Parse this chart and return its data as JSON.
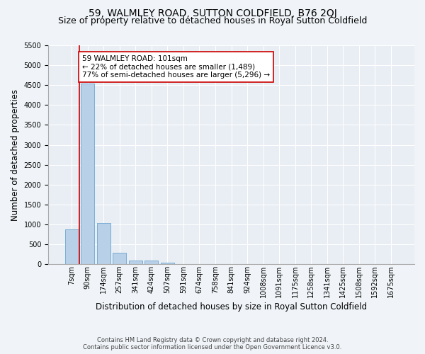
{
  "title": "59, WALMLEY ROAD, SUTTON COLDFIELD, B76 2QJ",
  "subtitle": "Size of property relative to detached houses in Royal Sutton Coldfield",
  "xlabel": "Distribution of detached houses by size in Royal Sutton Coldfield",
  "ylabel": "Number of detached properties",
  "footer_line1": "Contains HM Land Registry data © Crown copyright and database right 2024.",
  "footer_line2": "Contains public sector information licensed under the Open Government Licence v3.0.",
  "bar_labels": [
    "7sqm",
    "90sqm",
    "174sqm",
    "257sqm",
    "341sqm",
    "424sqm",
    "507sqm",
    "591sqm",
    "674sqm",
    "758sqm",
    "841sqm",
    "924sqm",
    "1008sqm",
    "1091sqm",
    "1175sqm",
    "1258sqm",
    "1341sqm",
    "1425sqm",
    "1508sqm",
    "1592sqm",
    "1675sqm"
  ],
  "bar_values": [
    880,
    4540,
    1040,
    280,
    95,
    85,
    45,
    0,
    0,
    0,
    0,
    0,
    0,
    0,
    0,
    0,
    0,
    0,
    0,
    0,
    0
  ],
  "bar_color": "#b8d0e8",
  "bar_edge_color": "#7aadd4",
  "highlight_line_color": "#cc0000",
  "annotation_text": "59 WALMLEY ROAD: 101sqm\n← 22% of detached houses are smaller (1,489)\n77% of semi-detached houses are larger (5,296) →",
  "annotation_box_color": "#ffffff",
  "annotation_box_edge": "#cc0000",
  "ylim_max": 5500,
  "yticks": [
    0,
    500,
    1000,
    1500,
    2000,
    2500,
    3000,
    3500,
    4000,
    4500,
    5000,
    5500
  ],
  "background_color": "#f0f4f8",
  "plot_background": "#e8eef4",
  "grid_color": "#ffffff",
  "title_fontsize": 10,
  "subtitle_fontsize": 9,
  "xlabel_fontsize": 8.5,
  "ylabel_fontsize": 8.5,
  "tick_fontsize": 7,
  "annot_fontsize": 7.5,
  "footer_fontsize": 6
}
